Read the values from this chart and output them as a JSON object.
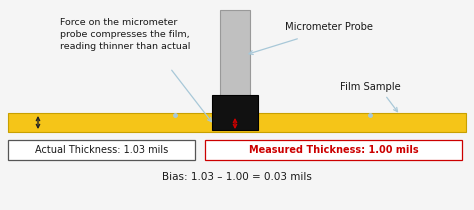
{
  "bg_color": "#f5f5f5",
  "film_color": "#f5c518",
  "film_edge_color": "#c8a000",
  "probe_shaft_color": "#c0c0c0",
  "probe_shaft_edge": "#999999",
  "probe_tip_color": "#111111",
  "text_black": "#1a1a1a",
  "text_red": "#cc0000",
  "arrow_light": "#a8c8d8",
  "arrow_black": "#222222",
  "white": "#ffffff",
  "box_gray_edge": "#555555",
  "annotation_force": "Force on the micrometer\nprobe compresses the film,\nreading thinner than actual",
  "annotation_probe": "Micrometer Probe",
  "annotation_film": "Film Sample",
  "actual_text": "Actual Thickness: 1.03 mils",
  "measured_text": "Measured Thickness: 1.00 mils",
  "bias_text": "Bias: 1.03 – 1.00 = 0.03 mils"
}
